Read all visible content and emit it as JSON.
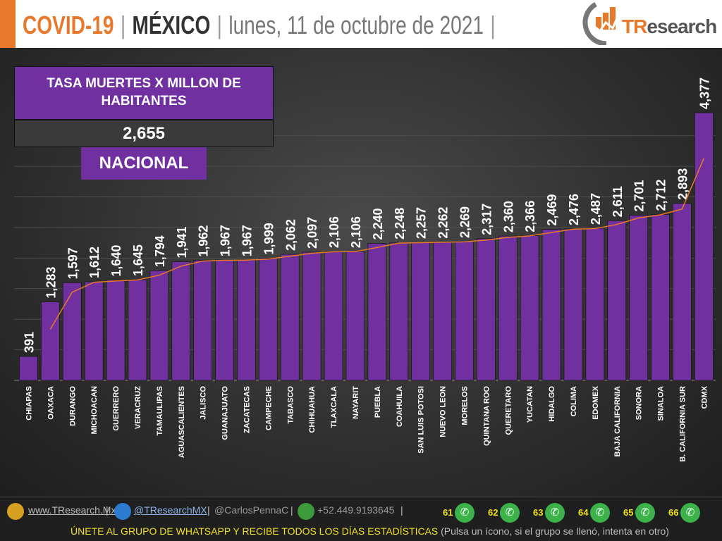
{
  "header": {
    "title": "COVID-19",
    "separator": "|",
    "country": "MÉXICO",
    "date": "lunes, 11 de octubre de 2021",
    "logo_text_accent": "TR",
    "logo_text": "esearch"
  },
  "summary": {
    "title": "TASA MUERTES X MILLON DE HABITANTES",
    "value": "2,655",
    "label": "NACIONAL"
  },
  "colors": {
    "bar": "#7030a0",
    "trend": "#e8782a",
    "accent": "#e8782a",
    "background": "#333333"
  },
  "chart_data": {
    "type": "bar",
    "title": "TASA MUERTES X MILLON DE HABITANTES",
    "categories": [
      "CHIAPAS",
      "OAXACA",
      "DURANGO",
      "MICHOACAN",
      "GUERRERO",
      "VERACRUZ",
      "TAMAULIPAS",
      "AGUASCALIENTES",
      "JALISCO",
      "GUANAJUATO",
      "ZACATECAS",
      "CAMPECHE",
      "TABASCO",
      "CHIHUAHUA",
      "TLAXCALA",
      "NAYARIT",
      "PUEBLA",
      "COAHUILA",
      "SAN LUIS POTOSI",
      "NUEVO LEON",
      "MORELOS",
      "QUINTANA ROO",
      "QUERETARO",
      "YUCATAN",
      "HIDALGO",
      "COLIMA",
      "EDOMEX",
      "BAJA CALIFORNIA",
      "SONORA",
      "SINALOA",
      "B. CALIFORNIA SUR",
      "CDMX"
    ],
    "values": [
      391,
      1283,
      1597,
      1612,
      1640,
      1645,
      1794,
      1941,
      1962,
      1967,
      1967,
      1999,
      2062,
      2097,
      2106,
      2106,
      2240,
      2248,
      2257,
      2262,
      2269,
      2317,
      2360,
      2366,
      2469,
      2476,
      2487,
      2611,
      2701,
      2712,
      2893,
      4377
    ],
    "labels": [
      "391",
      "1,283",
      "1,597",
      "1,612",
      "1,640",
      "1,645",
      "1,794",
      "1,941",
      "1,962",
      "1,967",
      "1,967",
      "1,999",
      "2,062",
      "2,097",
      "2,106",
      "2,106",
      "2,240",
      "2,248",
      "2,257",
      "2,262",
      "2,269",
      "2,317",
      "2,360",
      "2,366",
      "2,469",
      "2,476",
      "2,487",
      "2,611",
      "2,701",
      "2,712",
      "2,893",
      "4,377"
    ],
    "trendline": "2-period moving average",
    "ylim": [
      0,
      4400
    ],
    "grid": true
  },
  "footer": {
    "website": "www.TResearch.Mx",
    "twitter": "@TResearchMX",
    "user": "@CarlosPennaC",
    "phone": "+52.449.9193645",
    "sep": "|",
    "groups": [
      "61",
      "62",
      "63",
      "64",
      "65",
      "66"
    ],
    "cta": "ÚNETE AL GRUPO DE WHATSAPP Y RECIBE TODOS LOS DÍAS ESTADÍSTICAS",
    "cta_note": "(Pulsa un ícono, si el grupo se llenó, intenta en otro)"
  }
}
